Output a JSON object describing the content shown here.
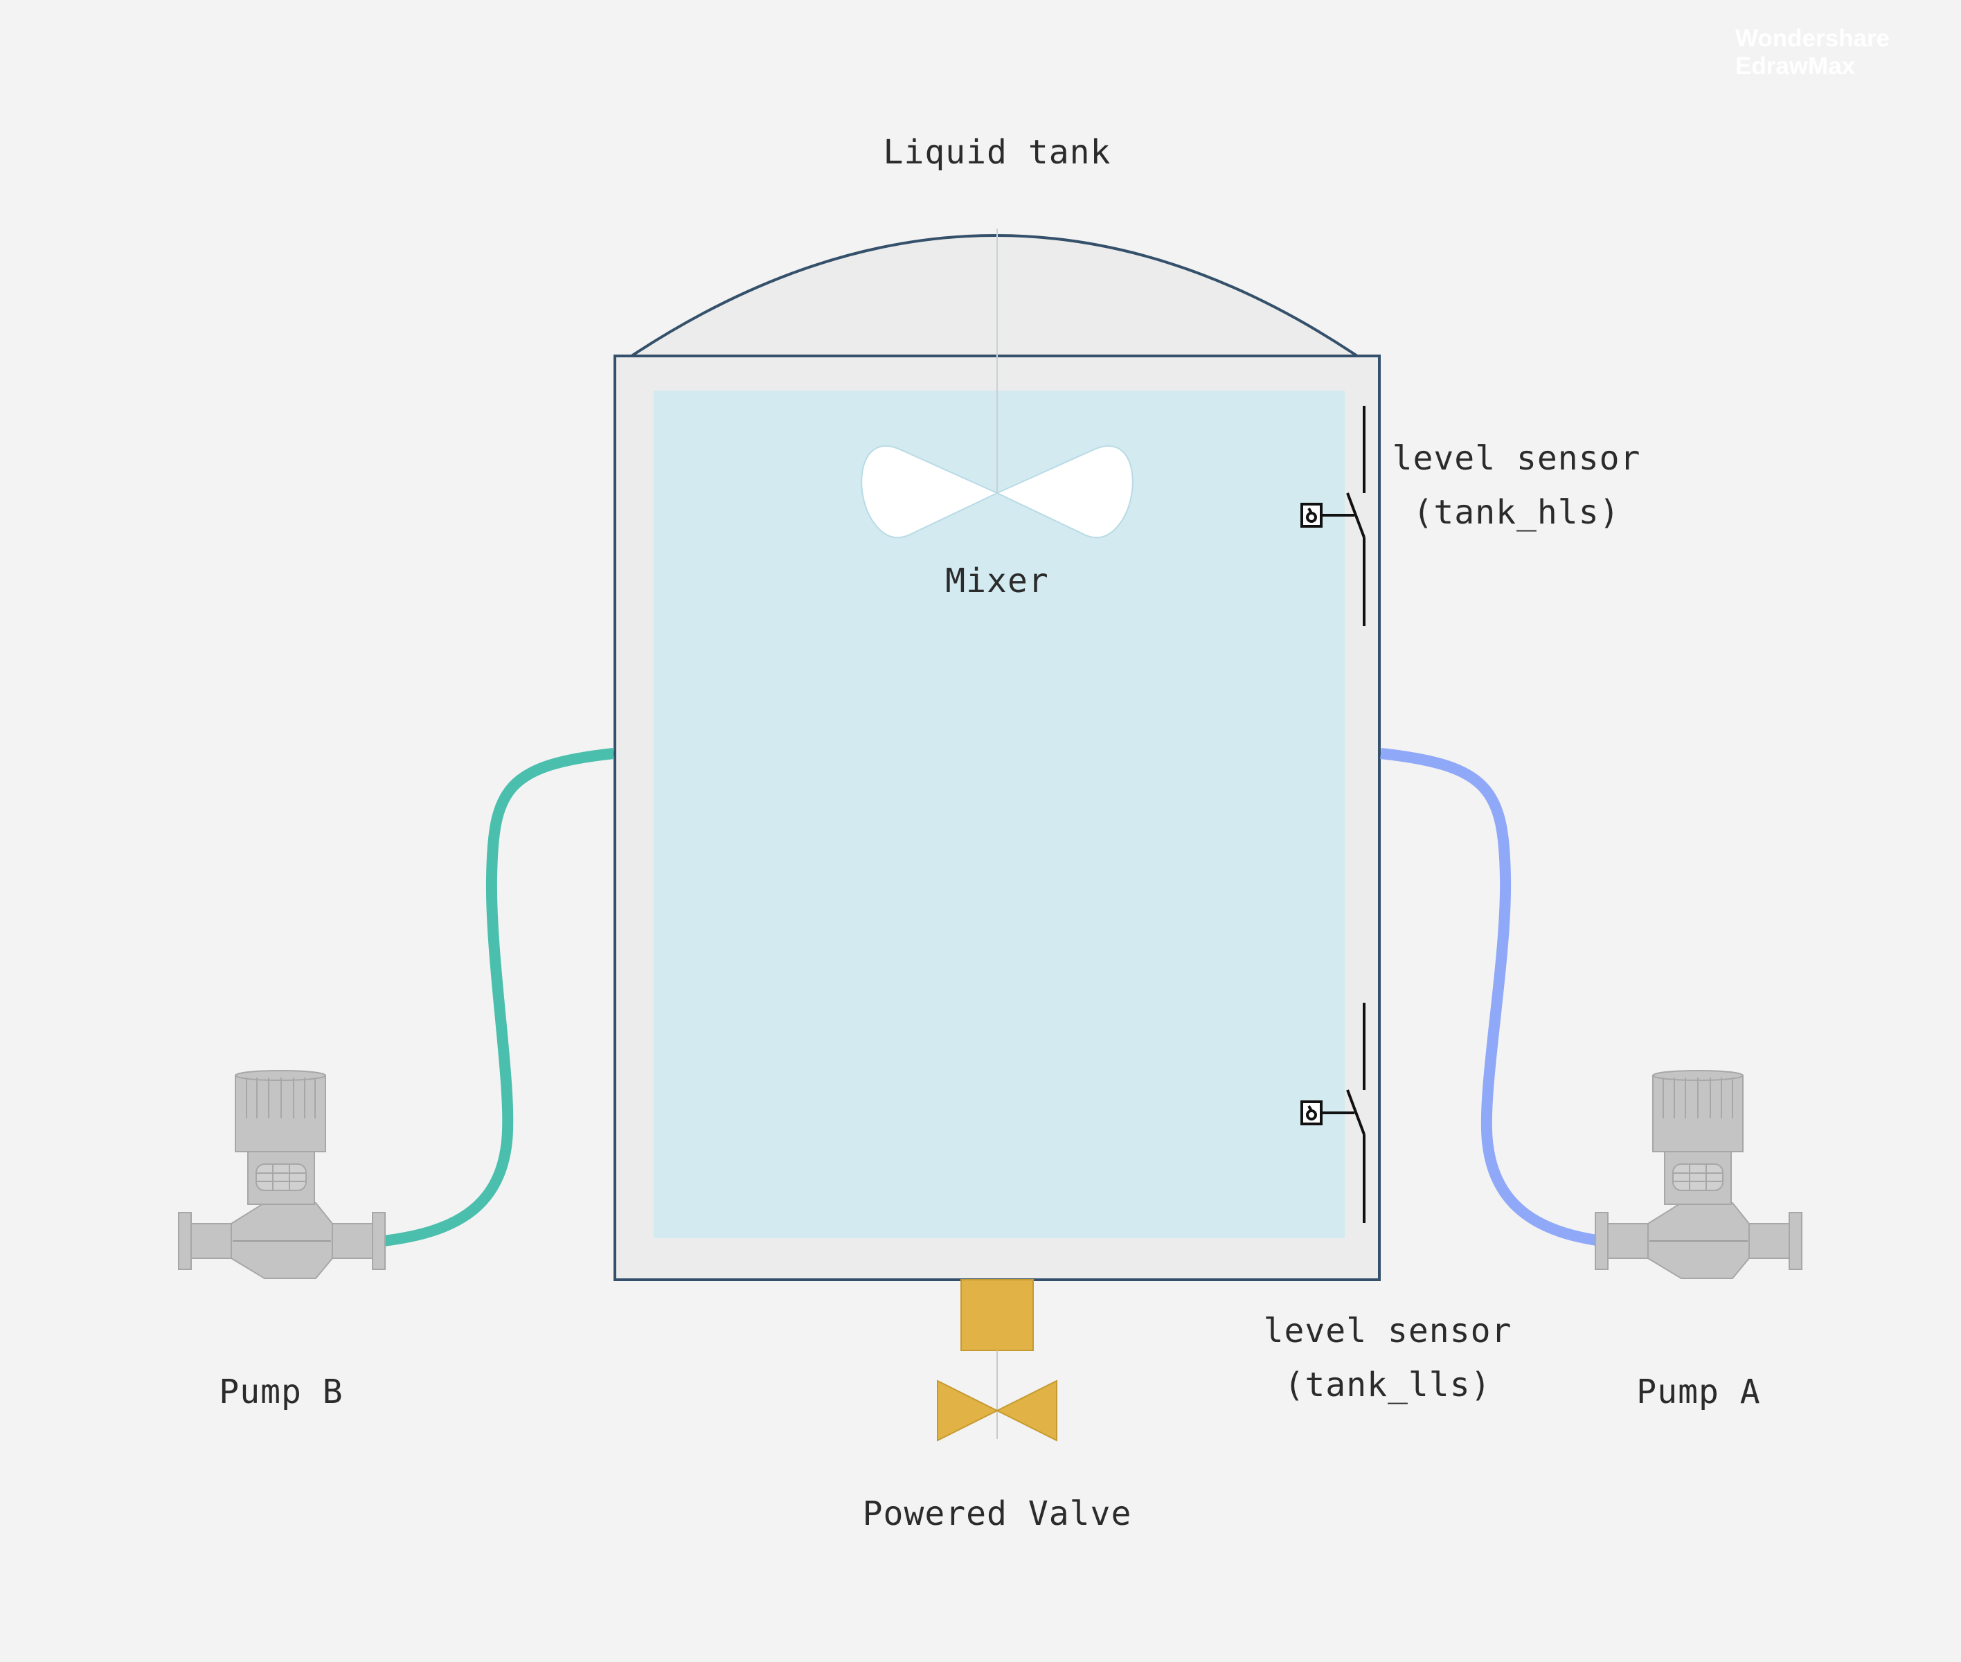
{
  "diagram": {
    "title": "Liquid tank",
    "mixer_label": "Mixer",
    "sensor_high": {
      "line1": "level sensor",
      "line2": "(tank_hls)"
    },
    "sensor_low": {
      "line1": "level sensor",
      "line2": "(tank_lls)"
    },
    "pump_a_label": "Pump A",
    "pump_b_label": "Pump B",
    "valve_label": "Powered Valve"
  },
  "watermark": {
    "line1": "Wondershare",
    "line2": "EdrawMax"
  },
  "colors": {
    "background": "#f3f3f3",
    "tank_outline": "#34506a",
    "tank_wall": "#ececec",
    "liquid": "#d2eaf0",
    "pipe_b": "#4bbfad",
    "pipe_a": "#8fa8f8",
    "pump": "#c4c4c4",
    "valve": "#e1b347"
  }
}
